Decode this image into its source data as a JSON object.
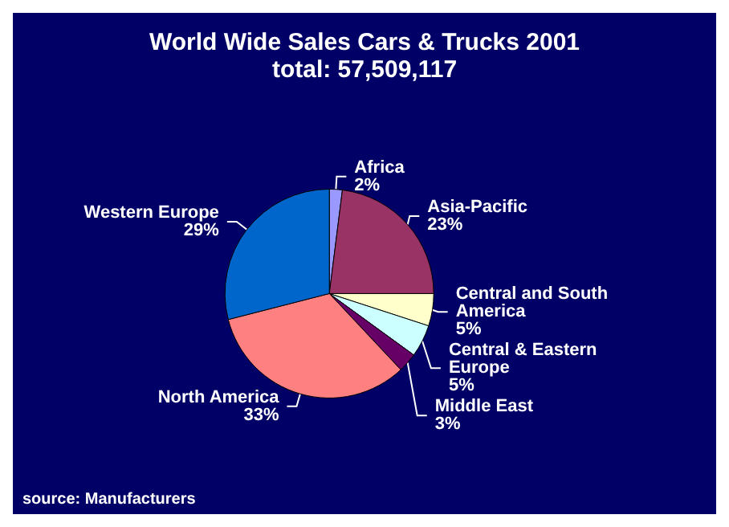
{
  "chart_data": {
    "type": "pie",
    "title": "World Wide Sales Cars & Trucks 2001",
    "subtitle": "total: 57,509,117",
    "categories": [
      "Africa",
      "Asia-Pacific",
      "Central and South America",
      "Central & Eastern Europe",
      "Middle East",
      "North America",
      "Western Europe"
    ],
    "values": [
      2,
      23,
      5,
      5,
      3,
      33,
      29
    ],
    "value_labels": [
      "2%",
      "23%",
      "5%",
      "5%",
      "3%",
      "33%",
      "29%"
    ],
    "colors": [
      "#9999ff",
      "#993366",
      "#ffffcc",
      "#ccffff",
      "#660066",
      "#ff8080",
      "#0066cc"
    ],
    "annotations": [
      "source: Manufacturers"
    ],
    "legend": false
  }
}
